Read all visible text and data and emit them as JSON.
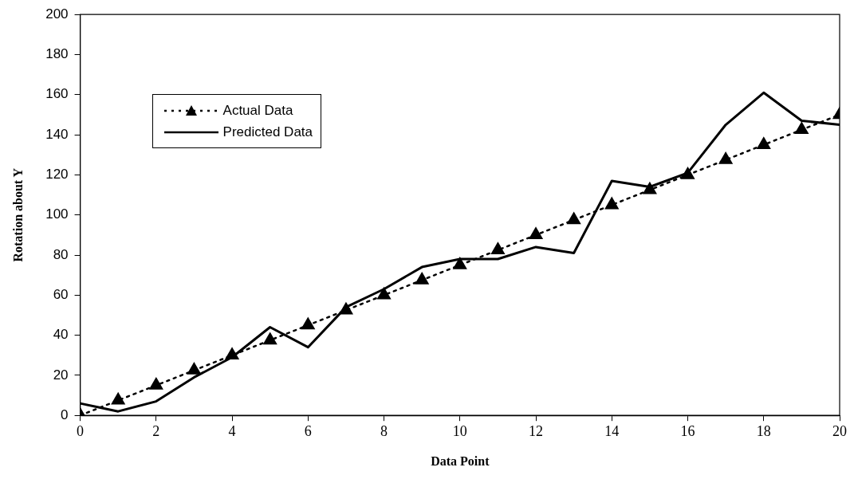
{
  "chart_data": {
    "type": "line",
    "xlabel": "Data Point",
    "ylabel": "Rotation about Y",
    "x": [
      0,
      1,
      2,
      3,
      4,
      5,
      6,
      7,
      8,
      9,
      10,
      11,
      12,
      13,
      14,
      15,
      16,
      17,
      18,
      19,
      20
    ],
    "xlim": [
      0,
      20
    ],
    "xticks": [
      0,
      2,
      4,
      6,
      8,
      10,
      12,
      14,
      16,
      18,
      20
    ],
    "ylim": [
      0,
      200
    ],
    "yticks": [
      0,
      20,
      40,
      60,
      80,
      100,
      120,
      140,
      160,
      180,
      200
    ],
    "grid": false,
    "legend": "top left",
    "series": [
      {
        "name": "Actual Data",
        "color": "#000000",
        "marker": "triangle",
        "line_style": "dotted",
        "values": [
          0,
          7.5,
          15,
          22.5,
          30,
          37.5,
          45,
          52.5,
          60,
          67.5,
          75,
          82.5,
          90,
          97.5,
          105,
          112.5,
          120,
          127.5,
          135,
          142.5,
          150
        ]
      },
      {
        "name": "Predicted Data",
        "color": "#000000",
        "marker": "none",
        "line_style": "solid",
        "values": [
          6,
          2,
          7,
          19,
          29,
          44,
          34,
          54,
          63,
          74,
          78,
          78,
          84,
          81,
          117,
          114,
          121,
          145,
          161,
          147,
          145
        ]
      }
    ]
  }
}
